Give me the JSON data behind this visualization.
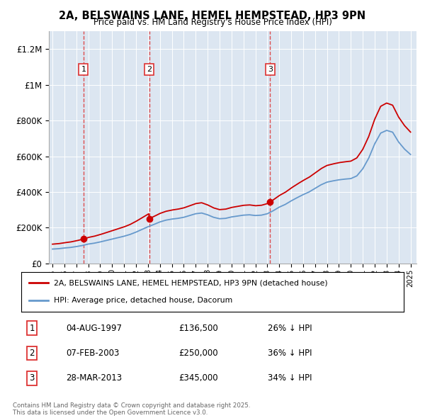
{
  "title_line1": "2A, BELSWAINS LANE, HEMEL HEMPSTEAD, HP3 9PN",
  "title_line2": "Price paid vs. HM Land Registry's House Price Index (HPI)",
  "plot_bg_color": "#dce6f1",
  "hpi_x": [
    1995.0,
    1995.5,
    1996.0,
    1996.5,
    1997.0,
    1997.5,
    1998.0,
    1998.5,
    1999.0,
    1999.5,
    2000.0,
    2000.5,
    2001.0,
    2001.5,
    2002.0,
    2002.5,
    2003.0,
    2003.5,
    2004.0,
    2004.5,
    2005.0,
    2005.5,
    2006.0,
    2006.5,
    2007.0,
    2007.5,
    2008.0,
    2008.5,
    2009.0,
    2009.5,
    2010.0,
    2010.5,
    2011.0,
    2011.5,
    2012.0,
    2012.5,
    2013.0,
    2013.5,
    2014.0,
    2014.5,
    2015.0,
    2015.5,
    2016.0,
    2016.5,
    2017.0,
    2017.5,
    2018.0,
    2018.5,
    2019.0,
    2019.5,
    2020.0,
    2020.5,
    2021.0,
    2021.5,
    2022.0,
    2022.5,
    2023.0,
    2023.5,
    2024.0,
    2024.5,
    2025.0
  ],
  "hpi_y": [
    80000,
    82000,
    86000,
    89000,
    94000,
    100000,
    108000,
    113000,
    120000,
    128000,
    136000,
    144000,
    152000,
    162000,
    175000,
    190000,
    205000,
    218000,
    232000,
    242000,
    248000,
    252000,
    258000,
    268000,
    278000,
    282000,
    272000,
    258000,
    250000,
    252000,
    260000,
    265000,
    270000,
    272000,
    268000,
    270000,
    278000,
    295000,
    315000,
    330000,
    350000,
    368000,
    385000,
    400000,
    420000,
    440000,
    455000,
    462000,
    468000,
    472000,
    475000,
    490000,
    530000,
    590000,
    670000,
    730000,
    745000,
    735000,
    680000,
    640000,
    610000
  ],
  "purchases": [
    {
      "num": 1,
      "date": "04-AUG-1997",
      "price": "£136,500",
      "note": "26% ↓ HPI",
      "year": 1997.6,
      "price_val": 136500
    },
    {
      "num": 2,
      "date": "07-FEB-2003",
      "price": "£250,000",
      "note": "36% ↓ HPI",
      "year": 2003.1,
      "price_val": 250000
    },
    {
      "num": 3,
      "date": "28-MAR-2013",
      "price": "£345,000",
      "note": "34% ↓ HPI",
      "year": 2013.24,
      "price_val": 345000
    }
  ],
  "legend_label_red": "2A, BELSWAINS LANE, HEMEL HEMPSTEAD, HP3 9PN (detached house)",
  "legend_label_blue": "HPI: Average price, detached house, Dacorum",
  "footnote": "Contains HM Land Registry data © Crown copyright and database right 2025.\nThis data is licensed under the Open Government Licence v3.0.",
  "ylim_min": 0,
  "ylim_max": 1300000,
  "xlim_min": 1994.7,
  "xlim_max": 2025.5,
  "red_color": "#cc0000",
  "blue_color": "#6699cc",
  "dashed_color": "#dd3333",
  "yticks": [
    0,
    200000,
    400000,
    600000,
    800000,
    1000000,
    1200000
  ],
  "ytick_labels": [
    "£0",
    "£200K",
    "£400K",
    "£600K",
    "£800K",
    "£1M",
    "£1.2M"
  ],
  "xticks": [
    1995,
    1996,
    1997,
    1998,
    1999,
    2000,
    2001,
    2002,
    2003,
    2004,
    2005,
    2006,
    2007,
    2008,
    2009,
    2010,
    2011,
    2012,
    2013,
    2014,
    2015,
    2016,
    2017,
    2018,
    2019,
    2020,
    2021,
    2022,
    2023,
    2024,
    2025
  ]
}
